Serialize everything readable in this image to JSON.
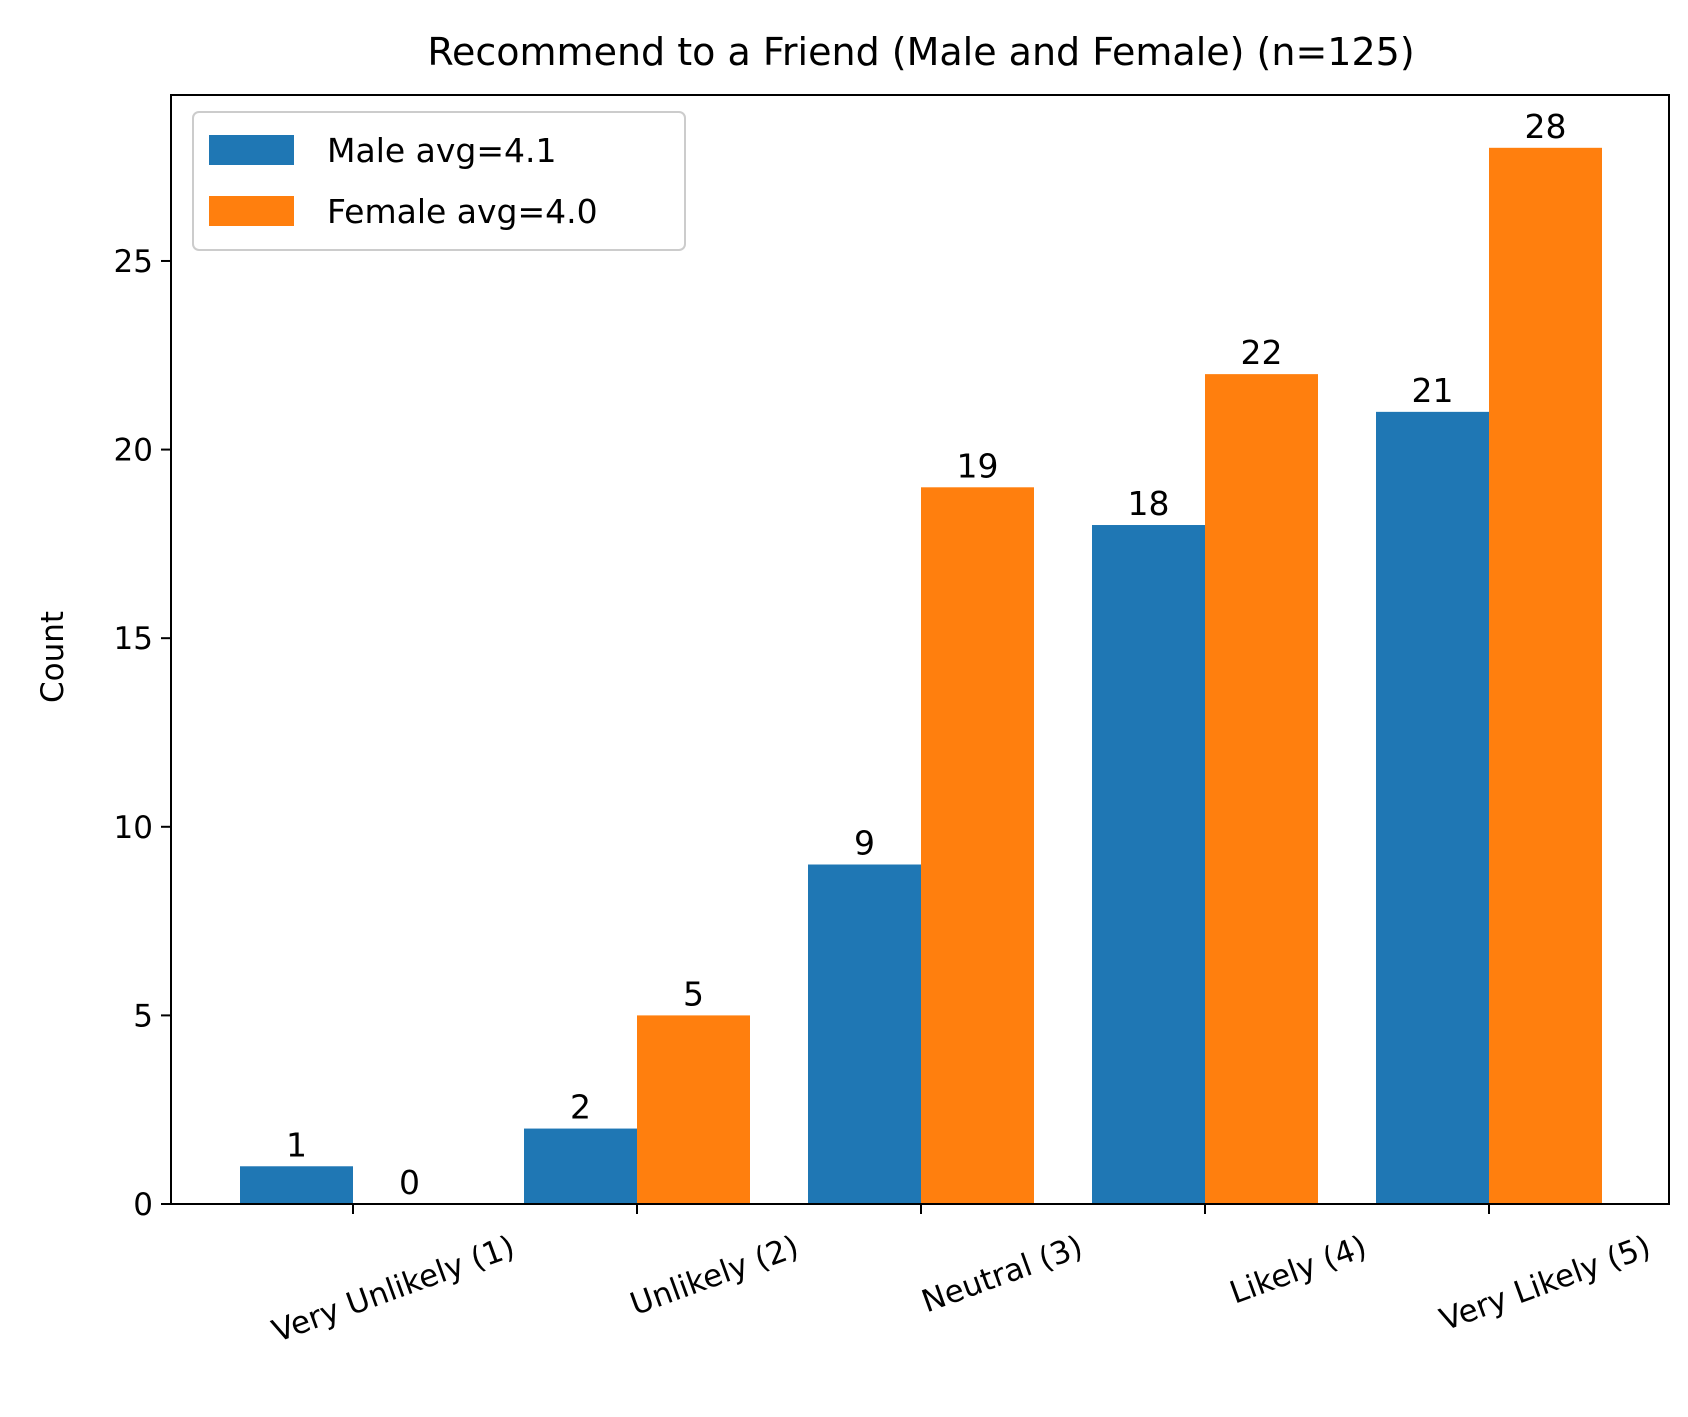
{
  "chart_data": {
    "type": "bar",
    "title": "Recommend to a Friend (Male and Female) (n=125)",
    "xlabel": "",
    "ylabel": "Count",
    "categories": [
      "Very Unlikely (1)",
      "Unlikely (2)",
      "Neutral (3)",
      "Likely (4)",
      "Very Likely (5)"
    ],
    "series": [
      {
        "name": "Male avg=4.1",
        "values": [
          1,
          2,
          9,
          18,
          21
        ],
        "color": "#1f77b4"
      },
      {
        "name": "Female avg=4.0",
        "values": [
          0,
          5,
          19,
          22,
          28
        ],
        "color": "#ff7f0e"
      }
    ],
    "yticks": [
      0,
      5,
      10,
      15,
      20,
      25
    ],
    "ylim": [
      0,
      29.4
    ],
    "grid": false,
    "legend_position": "top-left"
  }
}
